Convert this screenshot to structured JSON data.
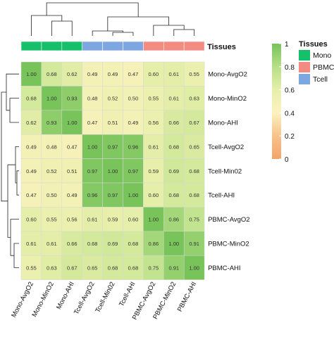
{
  "chart_data": {
    "type": "heatmap",
    "rows": [
      "Mono-AvgO2",
      "Mono-MinO2",
      "Mono-AHI",
      "Tcell-AvgO2",
      "Tcell-Min02",
      "Tcell-AHI",
      "PBMC-AvgO2",
      "PBMC-MinO2",
      "PBMC-AHI"
    ],
    "columns": [
      "Mono-AvgO2",
      "Mono-MinO2",
      "Mono-AHI",
      "Tcell-AvgO2",
      "Tcell-Min02",
      "Tcell-AHI",
      "PBMC-AvgO2",
      "PBMC-MinO2",
      "PBMC-AHI"
    ],
    "values": [
      [
        "1.00",
        "0.68",
        "0.62",
        "0.49",
        "0.49",
        "0.47",
        "0.60",
        "0.61",
        "0.55"
      ],
      [
        "0.68",
        "1.00",
        "0.93",
        "0.48",
        "0.52",
        "0.50",
        "0.55",
        "0.61",
        "0.63"
      ],
      [
        "0.62",
        "0.93",
        "1.00",
        "0.47",
        "0.51",
        "0.49",
        "0.56",
        "0.66",
        "0.67"
      ],
      [
        "0.49",
        "0.48",
        "0.47",
        "1.00",
        "0.97",
        "0.96",
        "0.61",
        "0.68",
        "0.65"
      ],
      [
        "0.49",
        "0.52",
        "0.51",
        "0.97",
        "1.00",
        "0.97",
        "0.59",
        "0.69",
        "0.68"
      ],
      [
        "0.47",
        "0.50",
        "0.49",
        "0.96",
        "0.97",
        "1.00",
        "0.60",
        "0.68",
        "0.68"
      ],
      [
        "0.60",
        "0.55",
        "0.56",
        "0.61",
        "0.59",
        "0.60",
        "1.00",
        "0.86",
        "0.75"
      ],
      [
        "0.61",
        "0.61",
        "0.66",
        "0.68",
        "0.69",
        "0.68",
        "0.86",
        "1.00",
        "0.91"
      ],
      [
        "0.55",
        "0.63",
        "0.67",
        "0.65",
        "0.68",
        "0.68",
        "0.75",
        "0.91",
        "1.00"
      ]
    ],
    "column_tissue": [
      "Mono",
      "Mono",
      "Mono",
      "Tcell",
      "Tcell",
      "Tcell",
      "PBMC",
      "PBMC",
      "PBMC"
    ],
    "annotation_label": "Tissues",
    "colorbar": {
      "min": 0,
      "max": 1,
      "ticks": [
        "0",
        "0.2",
        "0.4",
        "0.6",
        "0.8",
        "1"
      ],
      "stops": [
        {
          "value": 0.0,
          "color": "#f4a46a"
        },
        {
          "value": 0.2,
          "color": "#f6c28a"
        },
        {
          "value": 0.4,
          "color": "#fdf2bf"
        },
        {
          "value": 0.6,
          "color": "#e6efaa"
        },
        {
          "value": 0.8,
          "color": "#b6df86"
        },
        {
          "value": 1.0,
          "color": "#78c35a"
        }
      ]
    },
    "legend": {
      "title": "Tissues",
      "items": [
        {
          "name": "Mono",
          "color": "#16c06a"
        },
        {
          "name": "PBMC",
          "color": "#f28b82"
        },
        {
          "name": "Tcell",
          "color": "#7ea6e0"
        }
      ]
    },
    "tissue_colors": {
      "Mono": "#16c06a",
      "PBMC": "#f28b82",
      "Tcell": "#7ea6e0"
    },
    "dendrogram": true
  }
}
